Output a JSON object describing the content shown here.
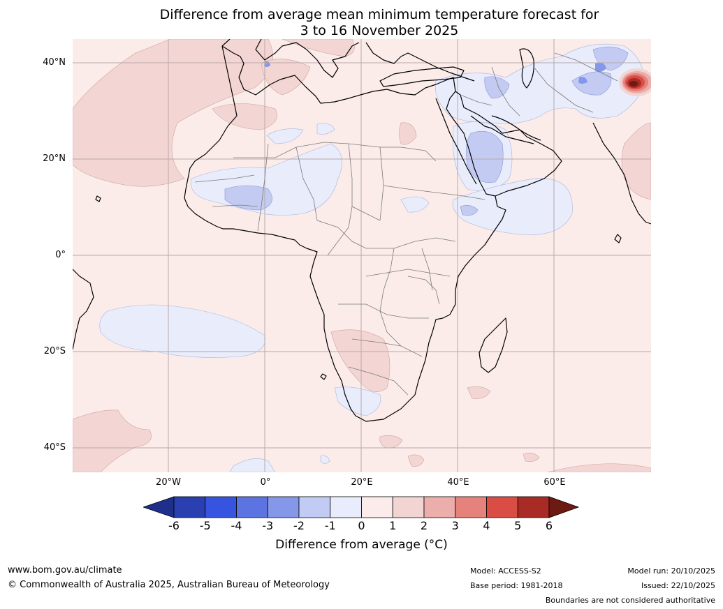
{
  "title": {
    "line1": "Difference from average mean minimum temperature forecast for",
    "line2": "3 to 16 November 2025"
  },
  "axes": {
    "lat_labels": [
      "40°N",
      "20°N",
      "0°",
      "20°S",
      "40°S"
    ],
    "lon_labels": [
      "20°W",
      "0°",
      "20°E",
      "40°E",
      "60°E"
    ]
  },
  "colorbar": {
    "ticks": [
      "-6",
      "-5",
      "-4",
      "-3",
      "-2",
      "-1",
      "0",
      "1",
      "2",
      "3",
      "4",
      "5",
      "6"
    ],
    "label": "Difference from average (°C)",
    "colors": [
      "#1e2f8c",
      "#2a3fb0",
      "#3654e0",
      "#5c73e2",
      "#8597e8",
      "#c2cbf4",
      "#e8ecfc",
      "#fbeceb",
      "#f2d4d2",
      "#ebaeab",
      "#e5827c",
      "#da4d45",
      "#a92b25",
      "#6e1a12"
    ]
  },
  "footer": {
    "website": "www.bom.gov.au/climate",
    "copyright": "© Commonwealth of Australia 2025, Australian Bureau of Meteorology",
    "model": "Model: ACCESS-S2",
    "base_period": "Base period: 1981-2018",
    "model_run": "Model run: 20/10/2025",
    "issued": "Issued: 22/10/2025",
    "disclaimer": "Boundaries are not considered authoritative"
  }
}
